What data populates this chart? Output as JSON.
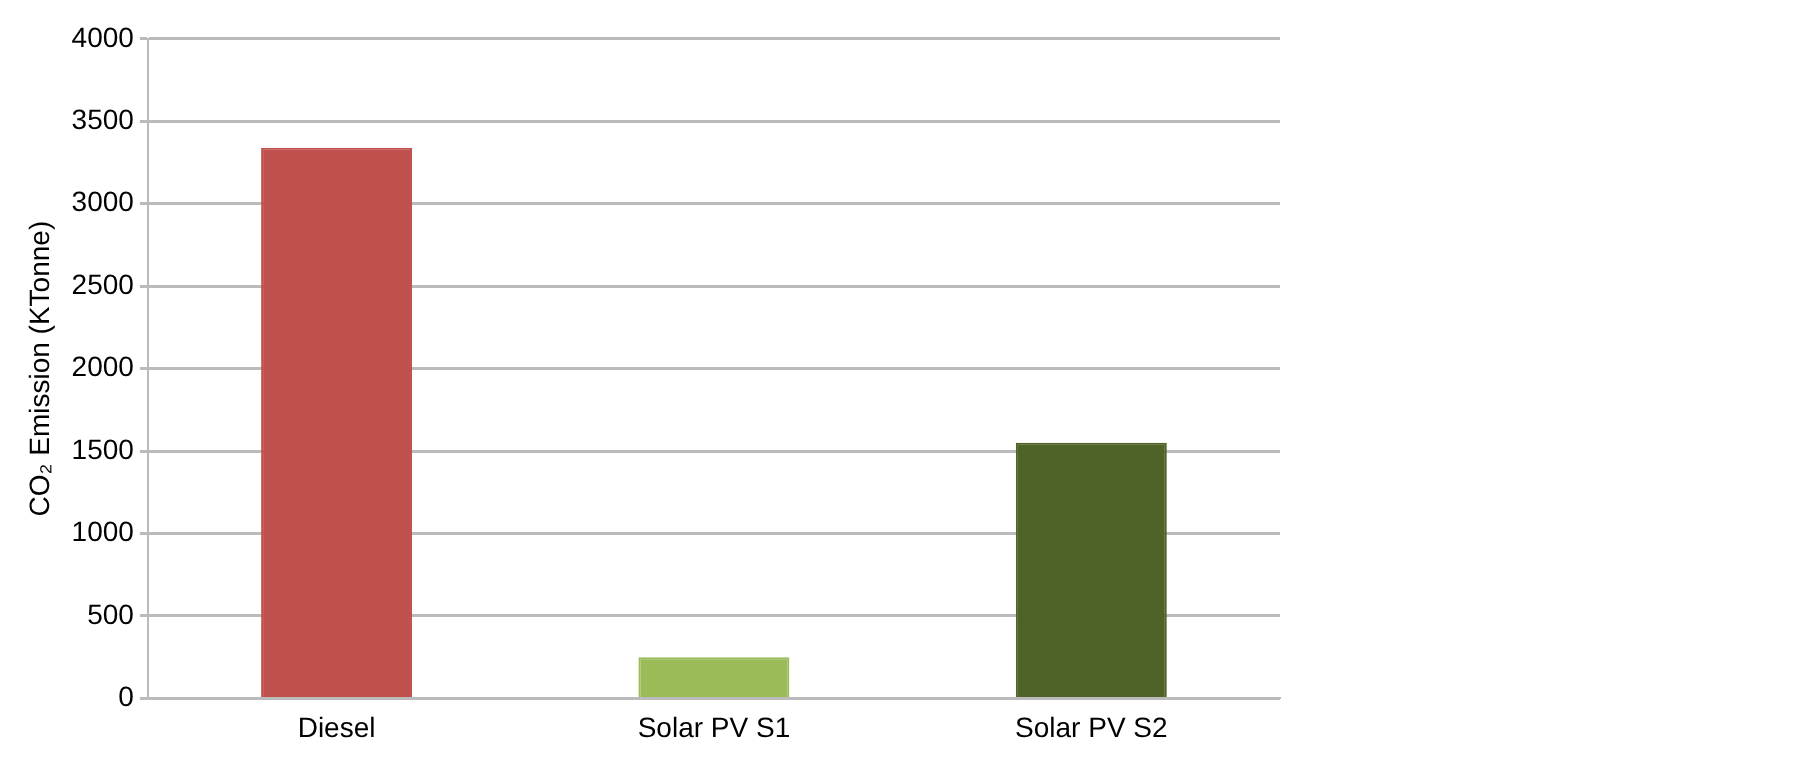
{
  "chart_data": {
    "type": "bar",
    "ylabel": "CO₂ Emission (KTonne)",
    "categories": [
      "Diesel",
      "Solar PV S1",
      "Solar PV S2"
    ],
    "values": [
      3340,
      250,
      1550
    ],
    "colors": [
      "#c0504d",
      "#9bbb59",
      "#4f6228"
    ],
    "ylim": [
      0,
      4000
    ],
    "yticks": [
      0,
      500,
      1000,
      1500,
      2000,
      2500,
      3000,
      3500,
      4000
    ],
    "grid": "y"
  }
}
